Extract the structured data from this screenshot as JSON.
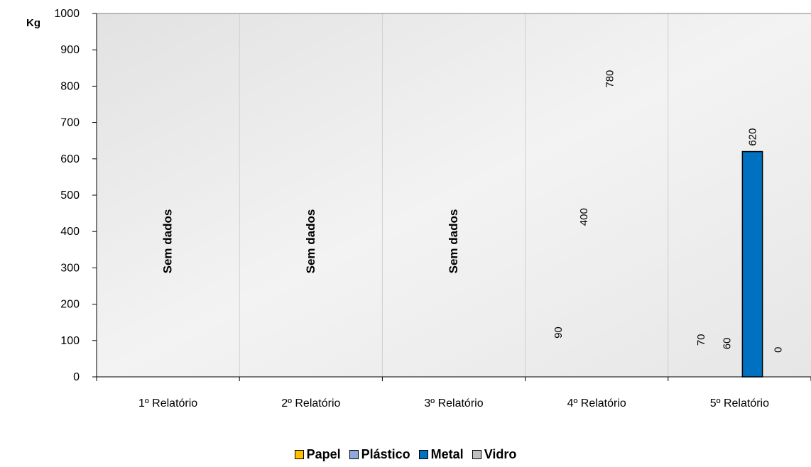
{
  "chart_data": {
    "type": "bar",
    "ylabel": "Kg",
    "ylim": [
      0,
      1000
    ],
    "yticks": [
      0,
      100,
      200,
      300,
      400,
      500,
      600,
      700,
      800,
      900,
      1000
    ],
    "categories": [
      "1º Relatório",
      "2º Relatório",
      "3º Relatório",
      "4º Relatório",
      "5º Relatório"
    ],
    "series": [
      {
        "name": "Papel",
        "color": "#FFC000",
        "values": [
          null,
          null,
          null,
          90,
          70
        ]
      },
      {
        "name": "Plástico",
        "color": "#8EA9DB",
        "values": [
          null,
          null,
          null,
          400,
          60
        ]
      },
      {
        "name": "Metal",
        "color": "#0070C0",
        "values": [
          null,
          null,
          null,
          780,
          620
        ]
      },
      {
        "name": "Vidro",
        "color": "#BFBFBF",
        "values": [
          null,
          null,
          null,
          null,
          0
        ]
      }
    ],
    "no_data_label": "Sem dados",
    "no_data_categories": [
      0,
      1,
      2
    ],
    "legend_position": "bottom",
    "grid": "vertical category separators"
  }
}
